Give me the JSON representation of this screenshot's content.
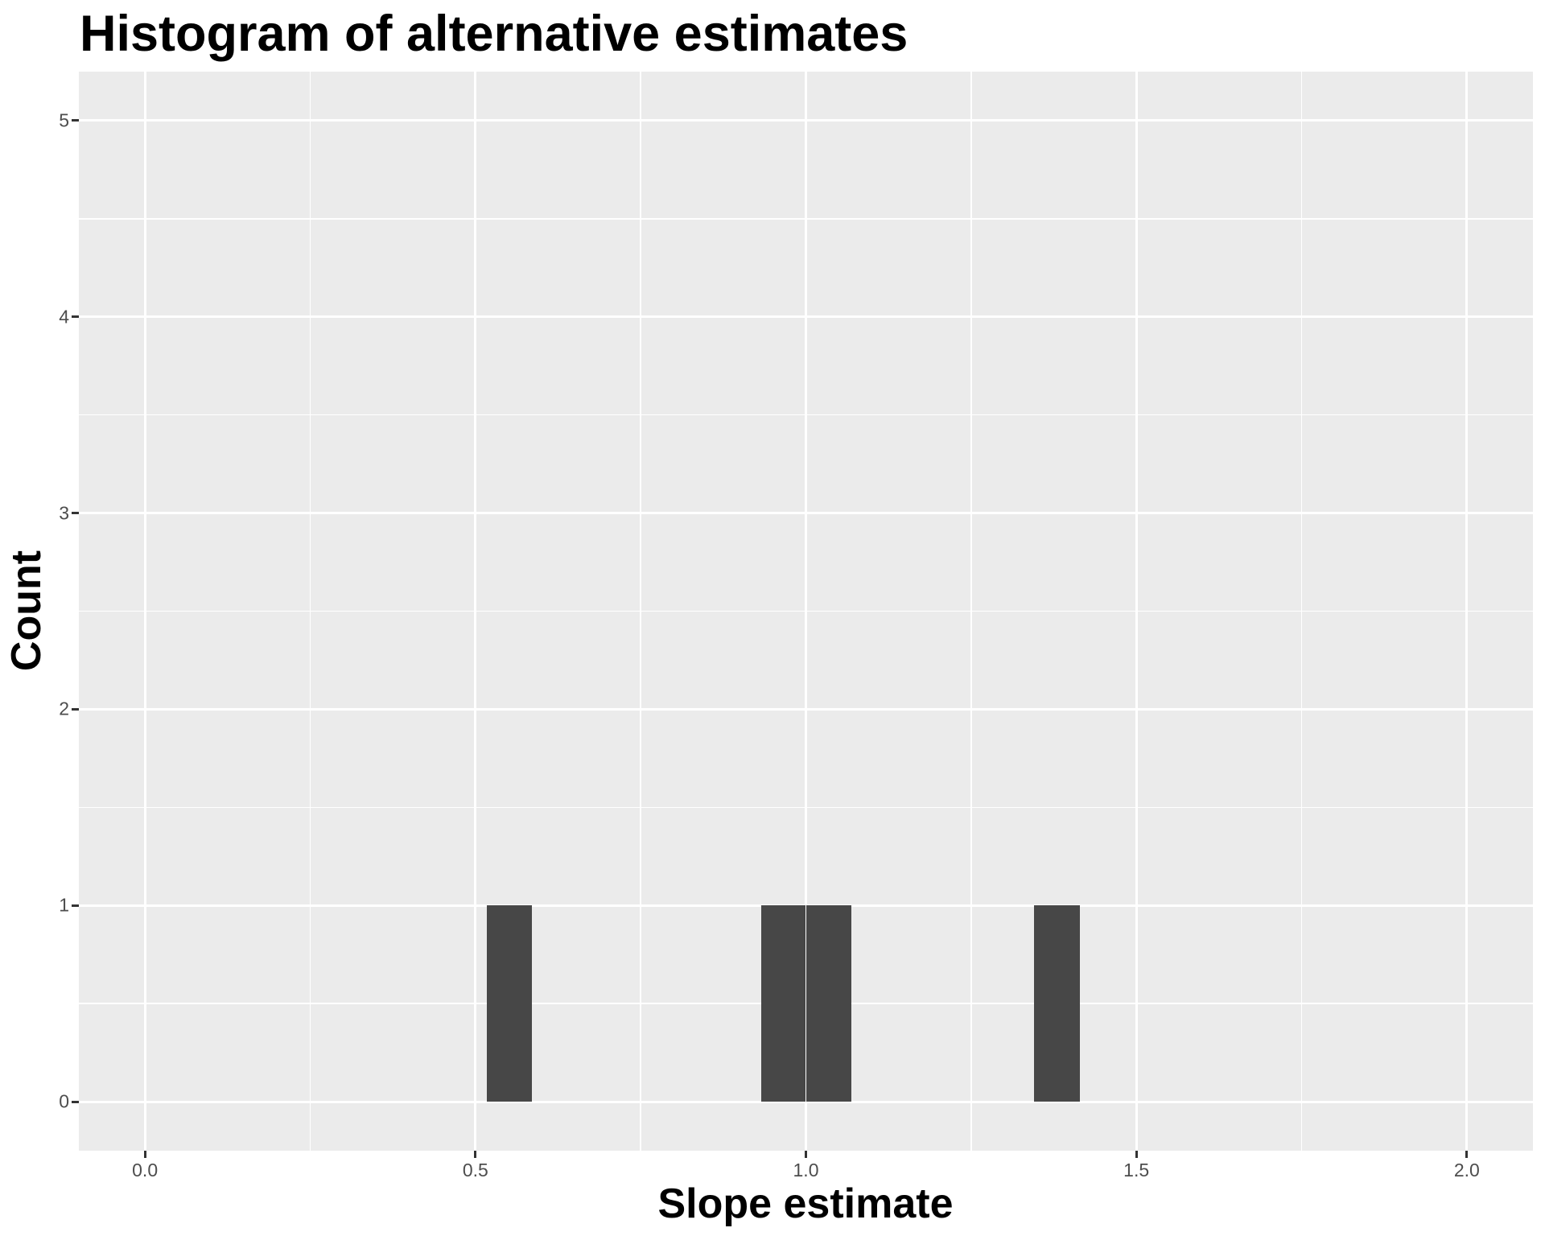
{
  "chart_data": {
    "type": "bar",
    "subtype": "histogram",
    "title": "Histogram of alternative estimates",
    "xlabel": "Slope estimate",
    "ylabel": "Count",
    "bins": [
      {
        "x0": 0.517,
        "x1": 0.586,
        "count": 1
      },
      {
        "x0": 0.932,
        "x1": 1.0,
        "count": 1
      },
      {
        "x0": 1.0,
        "x1": 1.069,
        "count": 1
      },
      {
        "x0": 1.345,
        "x1": 1.414,
        "count": 1
      }
    ],
    "x_ticks": [
      {
        "value": 0.0,
        "label": "0.0"
      },
      {
        "value": 0.5,
        "label": "0.5"
      },
      {
        "value": 1.0,
        "label": "1.0"
      },
      {
        "value": 1.5,
        "label": "1.5"
      },
      {
        "value": 2.0,
        "label": "2.0"
      }
    ],
    "y_ticks": [
      {
        "value": 0,
        "label": "0"
      },
      {
        "value": 1,
        "label": "1"
      },
      {
        "value": 2,
        "label": "2"
      },
      {
        "value": 3,
        "label": "3"
      },
      {
        "value": 4,
        "label": "4"
      },
      {
        "value": 5,
        "label": "5"
      }
    ],
    "x_minor_ticks": [
      0.25,
      0.75,
      1.25,
      1.75
    ],
    "y_minor_ticks": [
      0.5,
      1.5,
      2.5,
      3.5,
      4.5
    ],
    "xlim": [
      -0.1,
      2.1
    ],
    "ylim": [
      -0.25,
      5.25
    ],
    "grid": "major and minor white gridlines on grey panel",
    "legend": "none",
    "colors": {
      "bar_fill": "#474747",
      "panel_background": "#EBEBEB",
      "gridline": "#FFFFFF",
      "tick_mark": "#333333",
      "tick_label": "#4D4D4D",
      "text": "#000000",
      "page_background": "#FFFFFF"
    }
  }
}
